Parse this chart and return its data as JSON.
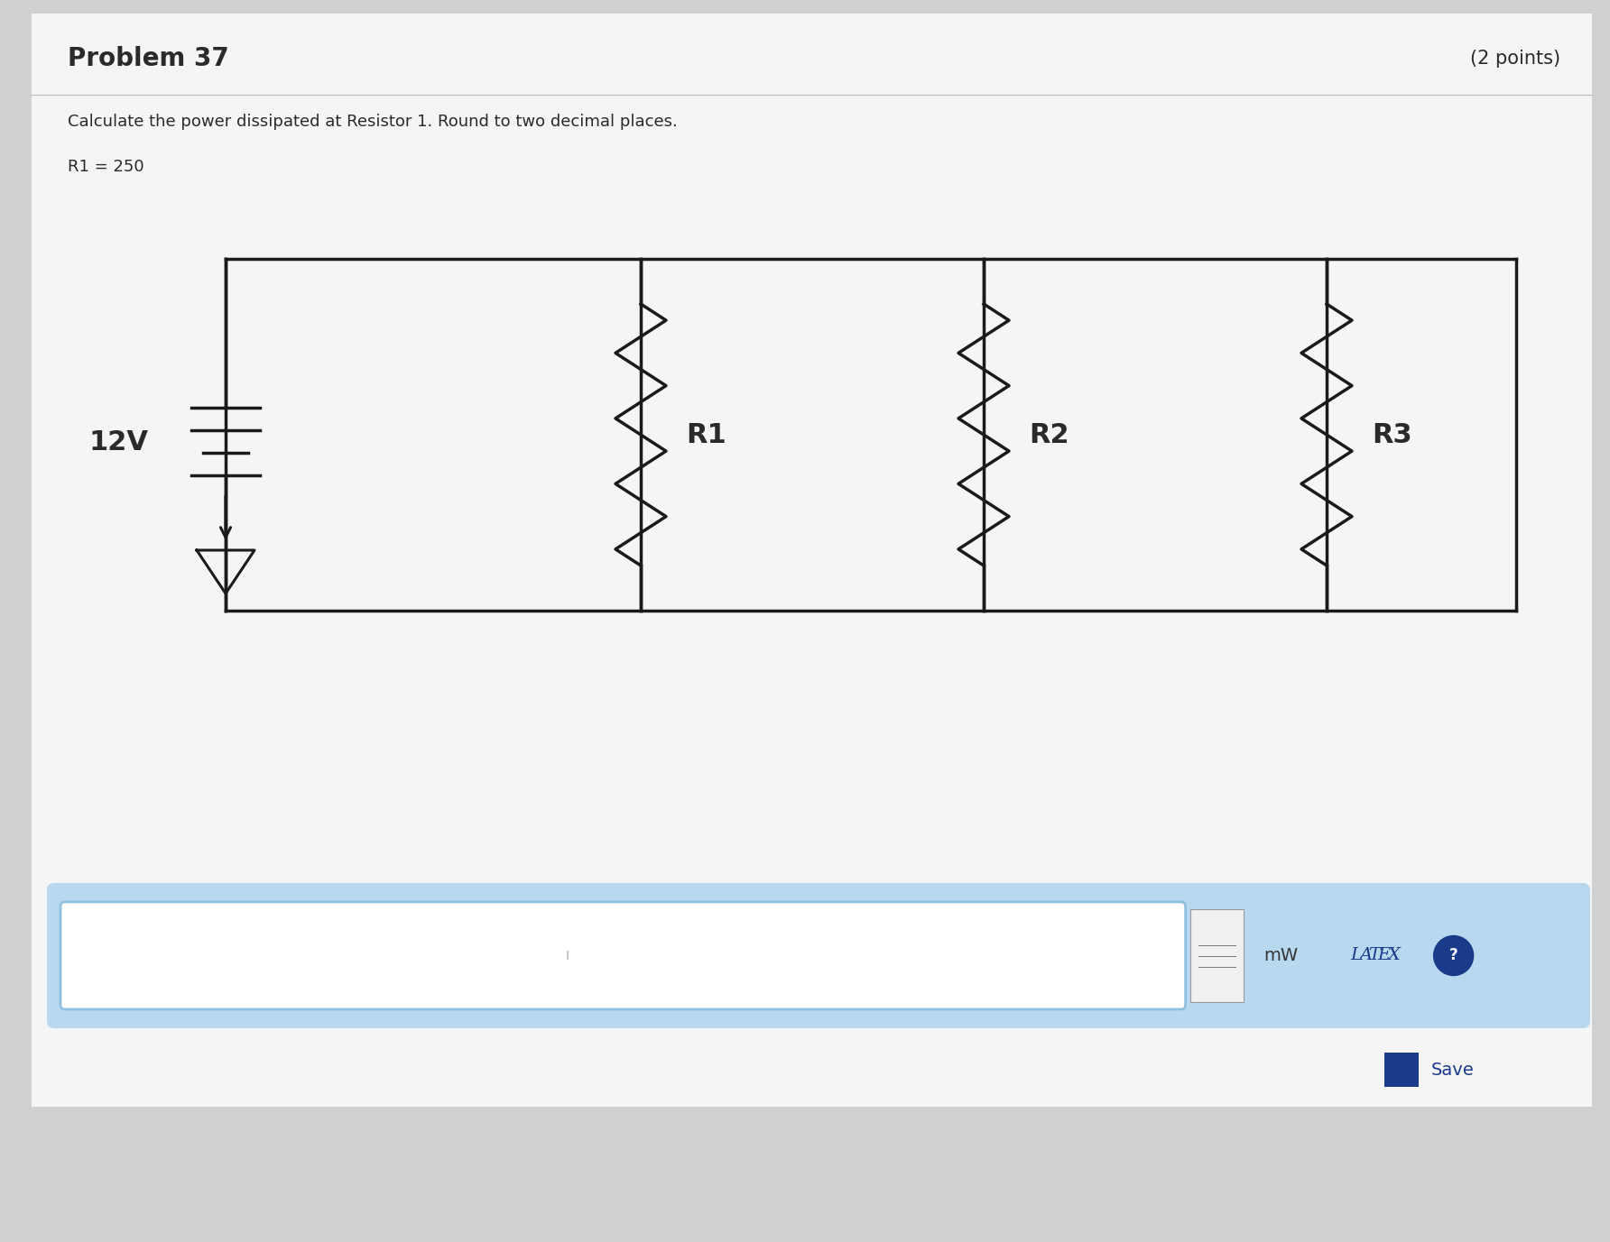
{
  "title": "Problem 37",
  "points": "(2 points)",
  "instruction": "Calculate the power dissipated at Resistor 1. Round to two decimal places.",
  "given": "R1 = 250",
  "voltage": "12V",
  "resistors": [
    "R1",
    "R2",
    "R3"
  ],
  "outer_bg": "#d0d0d0",
  "content_bg": "#e8e8e8",
  "white_panel": "#f5f5f5",
  "text_color": "#2a2a2a",
  "circuit_line_color": "#1a1a1a",
  "input_box_border": "#90c0e0",
  "input_box_bg": "#ffffff",
  "input_panel_bg": "#b8d8f0",
  "save_color": "#1a3a8a",
  "latex_color": "#1a3a8a",
  "mw_color": "#333333",
  "title_fontsize": 20,
  "subtitle_fontsize": 13,
  "given_fontsize": 13,
  "resistor_label_fontsize": 22,
  "voltage_fontsize": 22,
  "points_fontsize": 15
}
